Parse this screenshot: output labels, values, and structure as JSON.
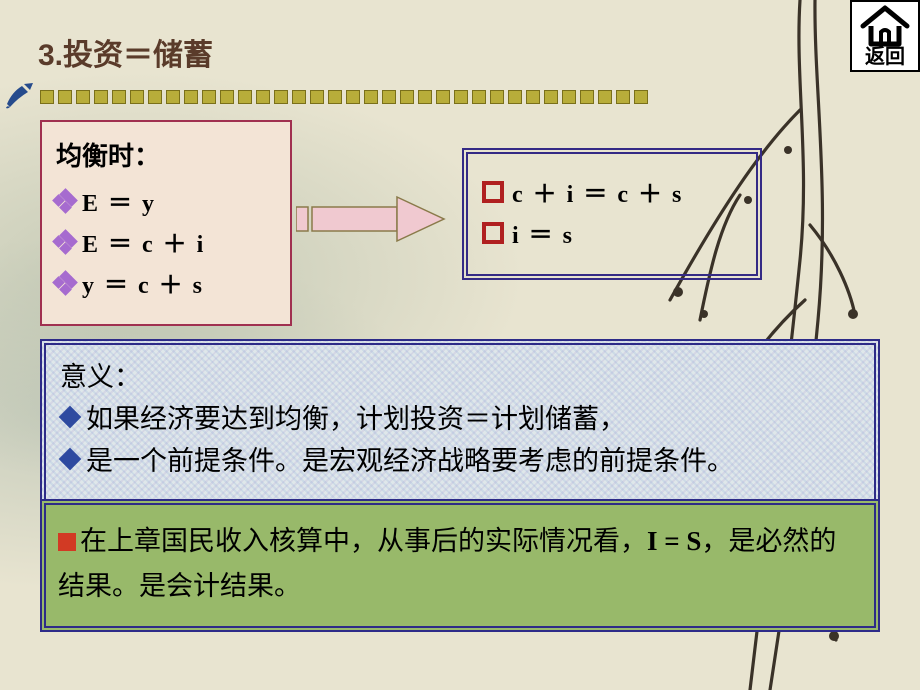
{
  "colors": {
    "title": "#5a3b2a",
    "border_rose": "#a03050",
    "border_navy": "#2d2b88",
    "box1_bg": "#f3e4d6",
    "green_panel": "#98b96a",
    "red_square": "#d23a24",
    "red_hollow": "#b02020",
    "blue_diamond": "#2e4aa0",
    "purple_diamond": "#a66bcf",
    "arrow_fill": "#f0c9d0",
    "arrow_stroke": "#8a7a4a",
    "dot_fill": "#b8ad3a",
    "dot_border": "#7a701a",
    "pen": "#264b8c",
    "branch": "#3a3228"
  },
  "back_button": {
    "label": "返回"
  },
  "title": "3.投资＝储蓄",
  "dots": {
    "count": 34
  },
  "box_left": {
    "heading": "均衡时：",
    "items": [
      "E ＝ y",
      "E ＝ c ＋ i",
      "y ＝ c ＋ s"
    ]
  },
  "box_right": {
    "items": [
      "c ＋ i ＝ c ＋ s",
      "i ＝ s"
    ]
  },
  "meaning": {
    "heading": "意义：",
    "lines": [
      "如果经济要达到均衡，计划投资＝计划储蓄，",
      "是一个前提条件。是宏观经济战略要考虑的前提条件。"
    ]
  },
  "result": {
    "pre": "在上章国民收入核算中，从事后的实际情况看，",
    "formula": "I = S",
    "post": "，是必然的结果。是会计结果。"
  }
}
